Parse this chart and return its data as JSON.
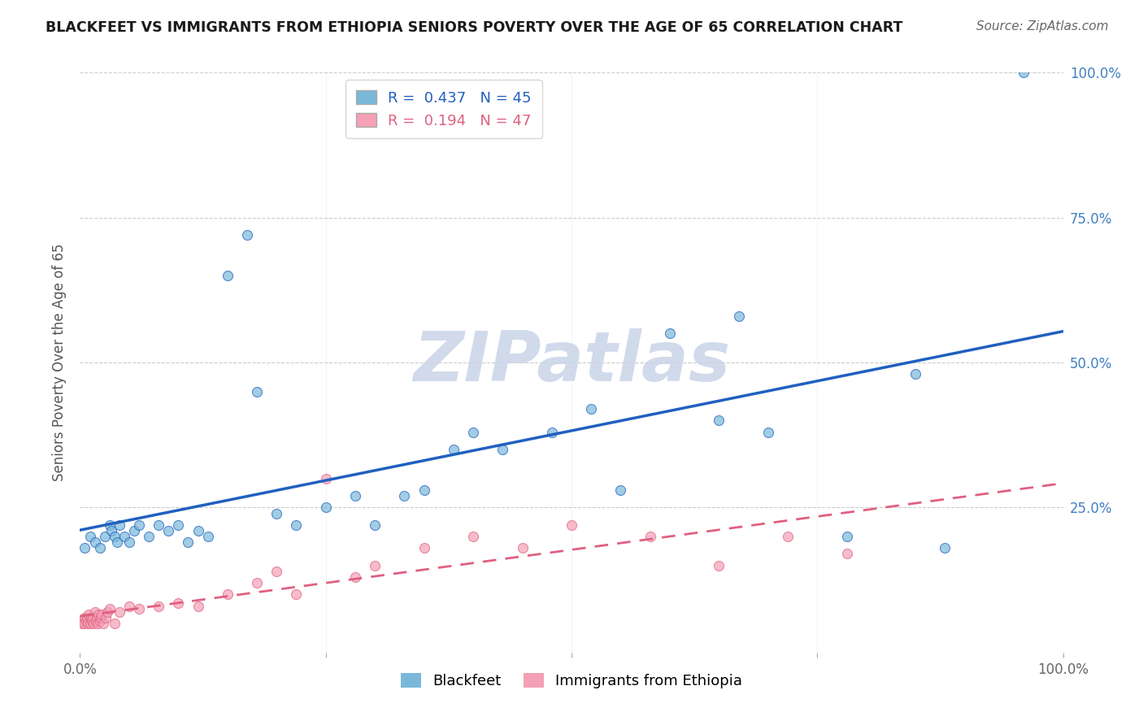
{
  "title": "BLACKFEET VS IMMIGRANTS FROM ETHIOPIA SENIORS POVERTY OVER THE AGE OF 65 CORRELATION CHART",
  "source": "Source: ZipAtlas.com",
  "ylabel": "Seniors Poverty Over the Age of 65",
  "legend_label1": "R =  0.437   N = 45",
  "legend_label2": "R =  0.194   N = 47",
  "legend_footer1": "Blackfeet",
  "legend_footer2": "Immigrants from Ethiopia",
  "watermark": "ZIPatlas",
  "color_blue": "#7ab8d9",
  "color_pink": "#f4a0b5",
  "color_blue_line": "#2060c0",
  "color_pink_line": "#e06080",
  "background_color": "#ffffff",
  "grid_color": "#e8e8e8",
  "watermark_color": "#d0d8e8",
  "tick_color": "#4080c0",
  "blackfeet_x": [
    0.5,
    1.0,
    1.5,
    2.0,
    2.5,
    3.0,
    3.2,
    3.5,
    3.8,
    4.0,
    4.5,
    5.0,
    5.5,
    6.0,
    7.0,
    8.0,
    9.0,
    10.0,
    11.0,
    12.0,
    13.0,
    15.0,
    17.0,
    18.0,
    20.0,
    22.0,
    25.0,
    28.0,
    30.0,
    33.0,
    35.0,
    38.0,
    40.0,
    43.0,
    48.0,
    52.0,
    55.0,
    60.0,
    65.0,
    67.0,
    70.0,
    78.0,
    85.0,
    88.0,
    96.0
  ],
  "blackfeet_y": [
    18.0,
    20.0,
    19.0,
    18.0,
    20.0,
    22.0,
    21.0,
    20.0,
    19.0,
    22.0,
    20.0,
    19.0,
    21.0,
    22.0,
    20.0,
    22.0,
    21.0,
    22.0,
    19.0,
    21.0,
    20.0,
    65.0,
    72.0,
    45.0,
    24.0,
    22.0,
    25.0,
    27.0,
    22.0,
    27.0,
    28.0,
    35.0,
    38.0,
    35.0,
    38.0,
    42.0,
    28.0,
    55.0,
    40.0,
    58.0,
    38.0,
    20.0,
    48.0,
    18.0,
    100.0
  ],
  "ethiopia_x": [
    0.2,
    0.3,
    0.4,
    0.5,
    0.6,
    0.7,
    0.8,
    0.9,
    1.0,
    1.1,
    1.2,
    1.3,
    1.4,
    1.5,
    1.6,
    1.7,
    1.8,
    1.9,
    2.0,
    2.1,
    2.2,
    2.4,
    2.6,
    2.8,
    3.0,
    3.5,
    4.0,
    5.0,
    6.0,
    8.0,
    10.0,
    12.0,
    15.0,
    18.0,
    20.0,
    22.0,
    25.0,
    28.0,
    30.0,
    35.0,
    40.0,
    45.0,
    50.0,
    58.0,
    65.0,
    72.0,
    78.0
  ],
  "ethiopia_y": [
    5.0,
    5.5,
    5.0,
    6.0,
    5.5,
    6.0,
    5.0,
    6.5,
    5.0,
    6.0,
    5.5,
    6.0,
    5.0,
    7.0,
    5.5,
    6.0,
    5.0,
    6.5,
    5.5,
    6.0,
    6.5,
    5.0,
    6.0,
    7.0,
    7.5,
    5.0,
    7.0,
    8.0,
    7.5,
    8.0,
    8.5,
    8.0,
    10.0,
    12.0,
    14.0,
    10.0,
    30.0,
    13.0,
    15.0,
    18.0,
    20.0,
    18.0,
    22.0,
    20.0,
    15.0,
    20.0,
    17.0
  ]
}
